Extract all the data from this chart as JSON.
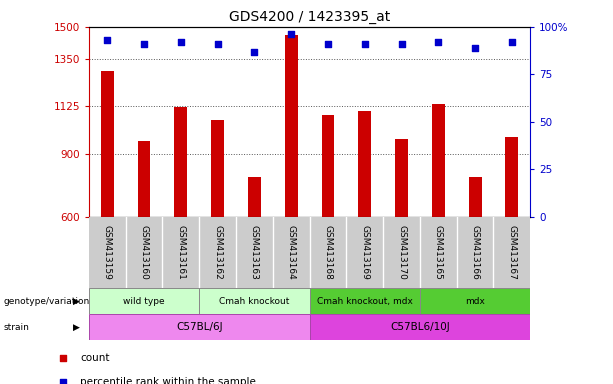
{
  "title": "GDS4200 / 1423395_at",
  "samples": [
    "GSM413159",
    "GSM413160",
    "GSM413161",
    "GSM413162",
    "GSM413163",
    "GSM413164",
    "GSM413168",
    "GSM413169",
    "GSM413170",
    "GSM413165",
    "GSM413166",
    "GSM413167"
  ],
  "counts": [
    1290,
    960,
    1120,
    1060,
    790,
    1460,
    1085,
    1100,
    970,
    1135,
    790,
    980
  ],
  "percentiles": [
    93,
    91,
    92,
    91,
    87,
    96,
    91,
    91,
    91,
    92,
    89,
    92
  ],
  "ylim_left": [
    600,
    1500
  ],
  "ylim_right": [
    0,
    100
  ],
  "yticks_left": [
    600,
    900,
    1125,
    1350,
    1500
  ],
  "ytick_labels_left": [
    "600",
    "900",
    "1125",
    "1350",
    "1500"
  ],
  "yticks_right": [
    0,
    25,
    50,
    75,
    100
  ],
  "ytick_labels_right": [
    "0",
    "25",
    "50",
    "75",
    "100%"
  ],
  "bar_color": "#cc0000",
  "dot_color": "#0000cc",
  "genotype_groups": [
    {
      "label": "wild type",
      "start": 0,
      "end": 2,
      "color": "#ccffcc"
    },
    {
      "label": "Cmah knockout",
      "start": 3,
      "end": 5,
      "color": "#ccffcc"
    },
    {
      "label": "Cmah knockout, mdx",
      "start": 6,
      "end": 8,
      "color": "#55cc33"
    },
    {
      "label": "mdx",
      "start": 9,
      "end": 11,
      "color": "#55cc33"
    }
  ],
  "strain_groups": [
    {
      "label": "C57BL/6J",
      "start": 0,
      "end": 5,
      "color": "#ee88ee"
    },
    {
      "label": "C57BL6/10J",
      "start": 6,
      "end": 11,
      "color": "#dd44dd"
    }
  ],
  "left_label_color": "#cc0000",
  "right_label_color": "#0000cc",
  "grid_color": "#555555",
  "bg_color": "#ffffff",
  "tick_bg_color": "#cccccc",
  "bar_width": 0.35
}
